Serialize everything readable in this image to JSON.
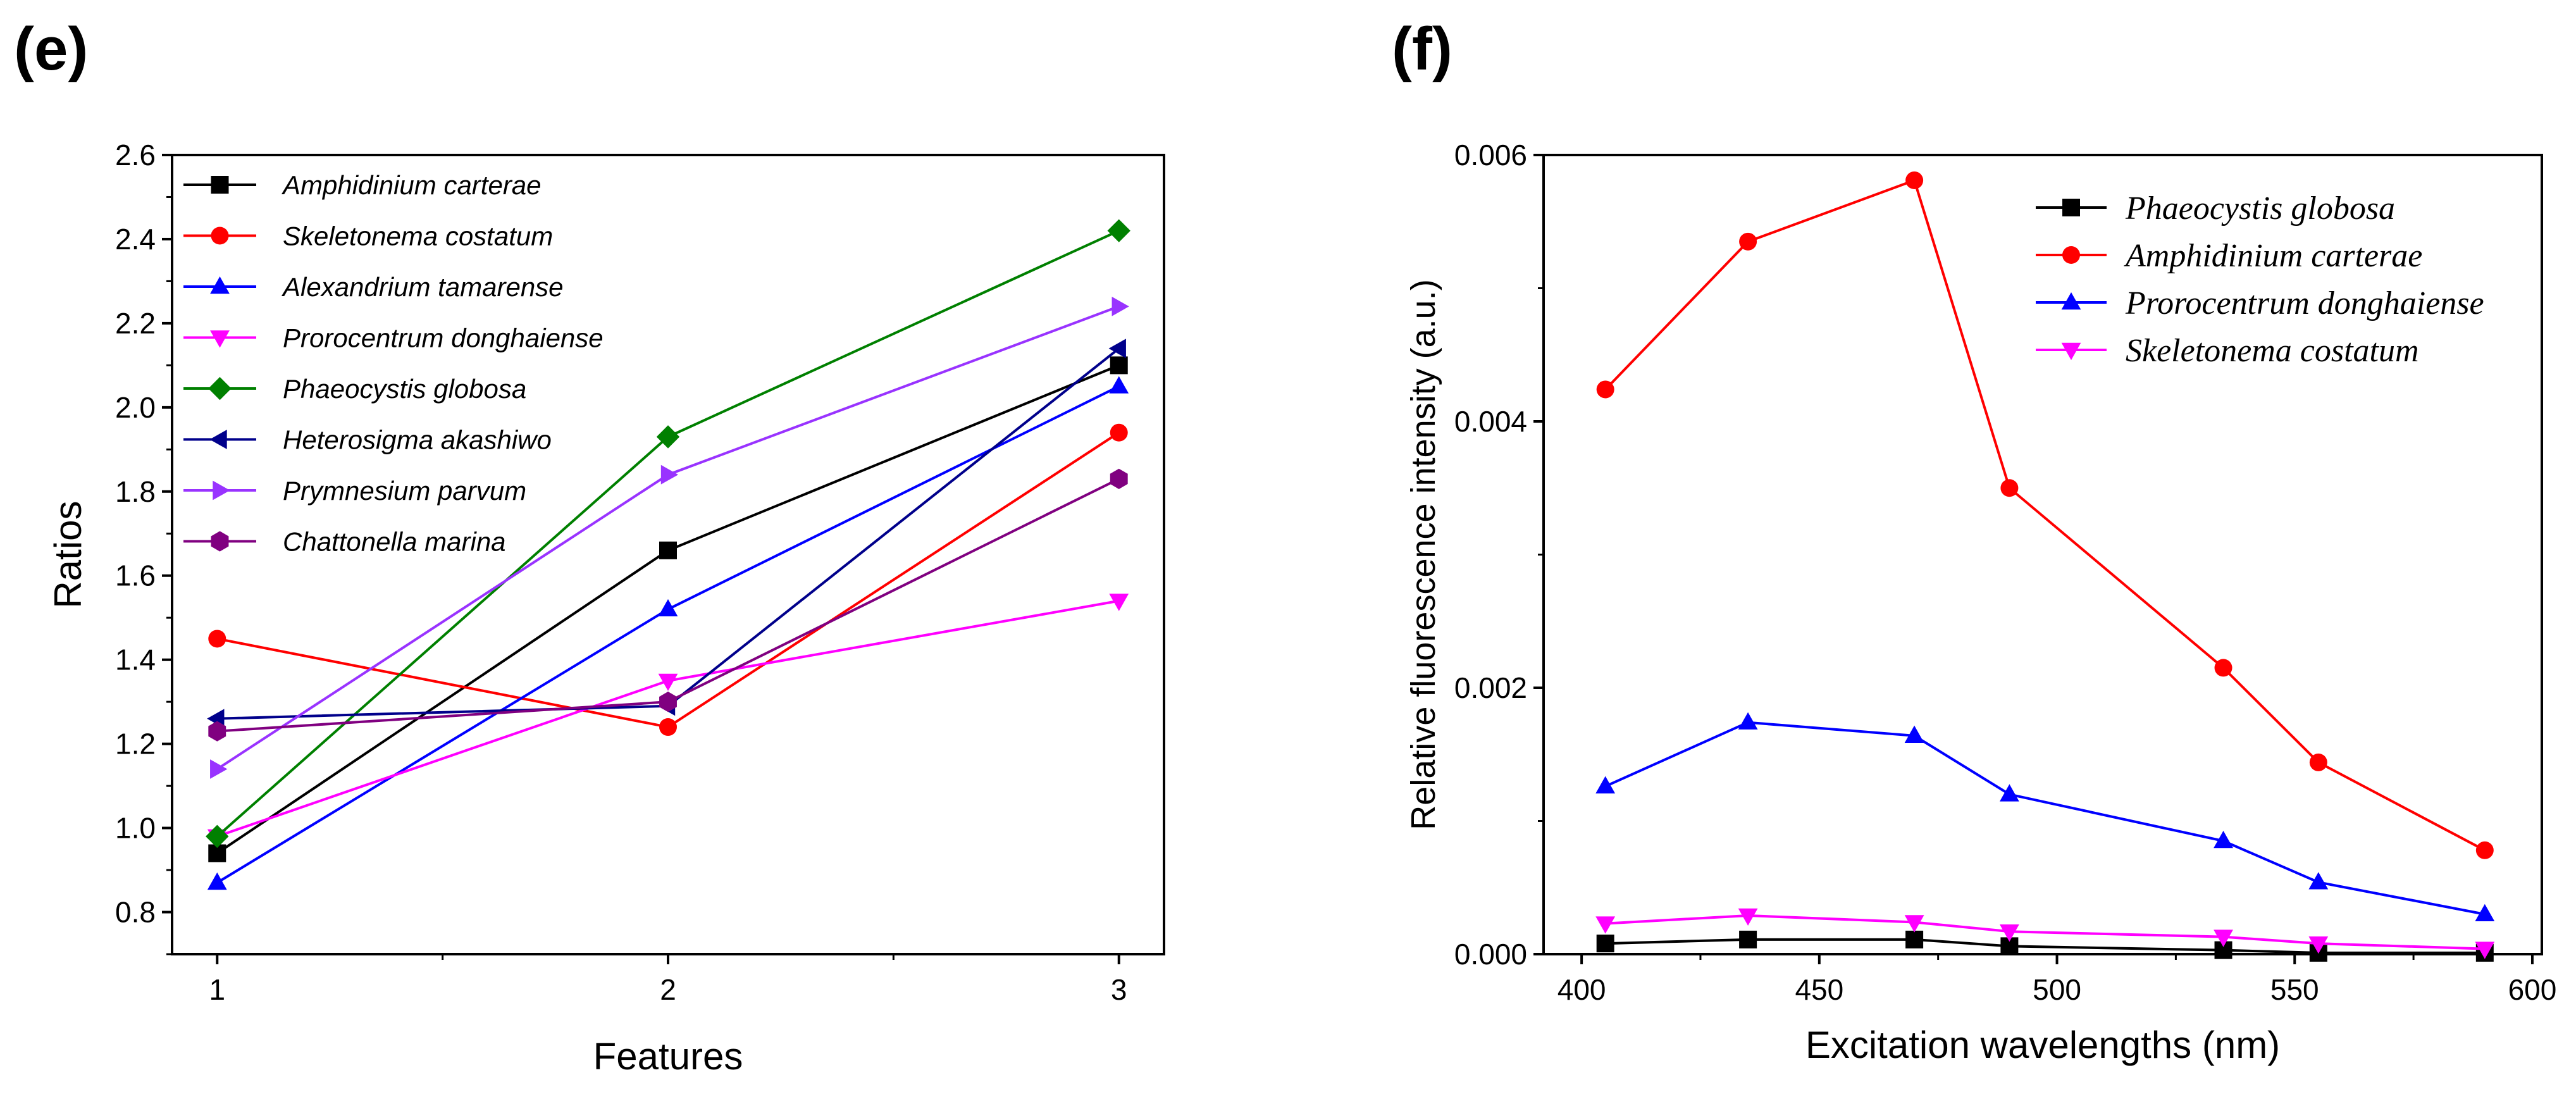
{
  "chart_data": [
    {
      "panel": "(e)",
      "type": "line",
      "title": "",
      "xlabel": "Features",
      "ylabel": "Ratios",
      "x": [
        1,
        2,
        3
      ],
      "xlim": [
        0.9,
        3.1
      ],
      "ylim": [
        0.7,
        2.6
      ],
      "xticks": [
        1,
        2,
        3
      ],
      "yticks": [
        0.8,
        1.0,
        1.2,
        1.4,
        1.6,
        1.8,
        2.0,
        2.2,
        2.4,
        2.6
      ],
      "legend_position": "top-left",
      "series": [
        {
          "name": "Amphidinium carterae",
          "color": "#000000",
          "marker": "square",
          "values": [
            0.94,
            1.66,
            2.1
          ]
        },
        {
          "name": "Skeletonema costatum",
          "color": "#ff0000",
          "marker": "circle",
          "values": [
            1.45,
            1.24,
            1.94
          ]
        },
        {
          "name": "Alexandrium tamarense",
          "color": "#0000ff",
          "marker": "triangle-up",
          "values": [
            0.87,
            1.52,
            2.05
          ]
        },
        {
          "name": "Prorocentrum donghaiense",
          "color": "#ff00ff",
          "marker": "triangle-down",
          "values": [
            0.98,
            1.35,
            1.54
          ]
        },
        {
          "name": "Phaeocystis globosa",
          "color": "#008000",
          "marker": "diamond",
          "values": [
            0.98,
            1.93,
            2.42
          ]
        },
        {
          "name": "Heterosigma akashiwo",
          "color": "#00008b",
          "marker": "triangle-left",
          "values": [
            1.26,
            1.29,
            2.14
          ]
        },
        {
          "name": "Prymnesium parvum",
          "color": "#9933ff",
          "marker": "triangle-right",
          "values": [
            1.14,
            1.84,
            2.24
          ]
        },
        {
          "name": "Chattonella marina",
          "color": "#800080",
          "marker": "hexagon",
          "values": [
            1.23,
            1.3,
            1.83
          ]
        }
      ]
    },
    {
      "panel": "(f)",
      "type": "line",
      "title": "",
      "xlabel": "Excitation wavelengths (nm)",
      "ylabel": "Relative fluorescence intensity (a.u.)",
      "x": [
        405,
        435,
        470,
        490,
        535,
        555,
        590
      ],
      "xlim": [
        392,
        602
      ],
      "ylim": [
        0,
        0.006
      ],
      "xticks": [
        400,
        450,
        500,
        550,
        600
      ],
      "yticks": [
        0.0,
        0.002,
        0.004,
        0.006
      ],
      "ytick_labels": [
        "0.000",
        "0.002",
        "0.004",
        "0.006"
      ],
      "legend_position": "top-right",
      "series": [
        {
          "name": "Phaeocystis globosa",
          "color": "#000000",
          "marker": "square",
          "values": [
            8e-05,
            0.00011,
            0.00011,
            6e-05,
            3e-05,
            1e-05,
            1e-05
          ]
        },
        {
          "name": "Amphidinium carterae",
          "color": "#ff0000",
          "marker": "circle",
          "values": [
            0.00424,
            0.00535,
            0.00581,
            0.0035,
            0.00215,
            0.00144,
            0.00078
          ]
        },
        {
          "name": "Prorocentrum donghaiense",
          "color": "#0000ff",
          "marker": "triangle-up",
          "values": [
            0.00126,
            0.00174,
            0.00164,
            0.0012,
            0.00085,
            0.00054,
            0.0003
          ]
        },
        {
          "name": "Skeletonema costatum",
          "color": "#ff00ff",
          "marker": "triangle-down",
          "values": [
            0.00023,
            0.00029,
            0.00024,
            0.00017,
            0.00013,
            8e-05,
            4e-05
          ]
        }
      ]
    }
  ]
}
